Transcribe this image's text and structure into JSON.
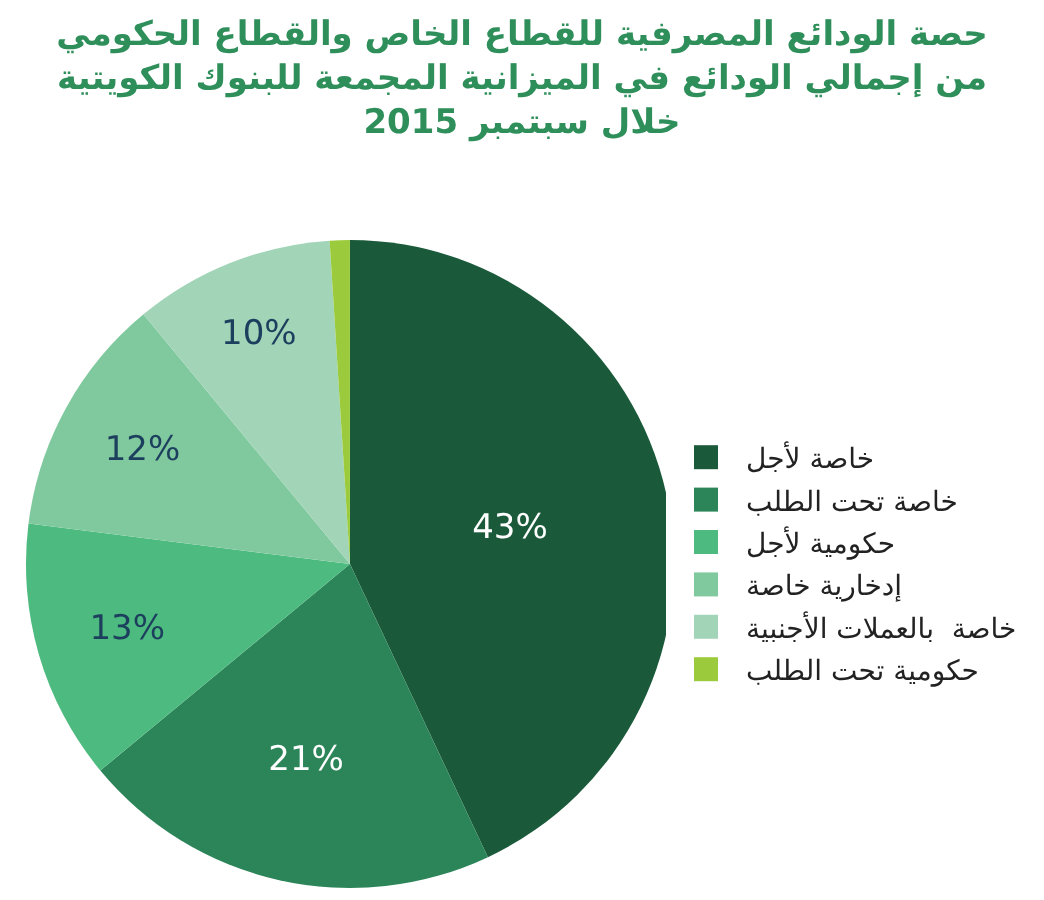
{
  "chart_data": {
    "type": "pie",
    "title": "حصة الودائع المصرفية للقطاع الخاص والقطاع الحكومي\nمن إجمالي الودائع في الميزانية المجمعة للبنوك الكويتية\nخلال سبتمبر 2015",
    "categories": [
      "خاصة لأجل",
      "خاصة تحت الطلب",
      "حكومية لأجل",
      "إدخارية خاصة",
      "خاصة  بالعملات الأجنبية",
      "حكومية تحت الطلب"
    ],
    "values": [
      43,
      21,
      13,
      12,
      10,
      1
    ],
    "value_labels": [
      "43%",
      "21%",
      "13%",
      "12%",
      "10%",
      null
    ],
    "colors": [
      "#1a5a3a",
      "#2b8559",
      "#4dbb7f",
      "#80c99e",
      "#a2d5b8",
      "#9bcb3c"
    ],
    "legend": "right"
  }
}
